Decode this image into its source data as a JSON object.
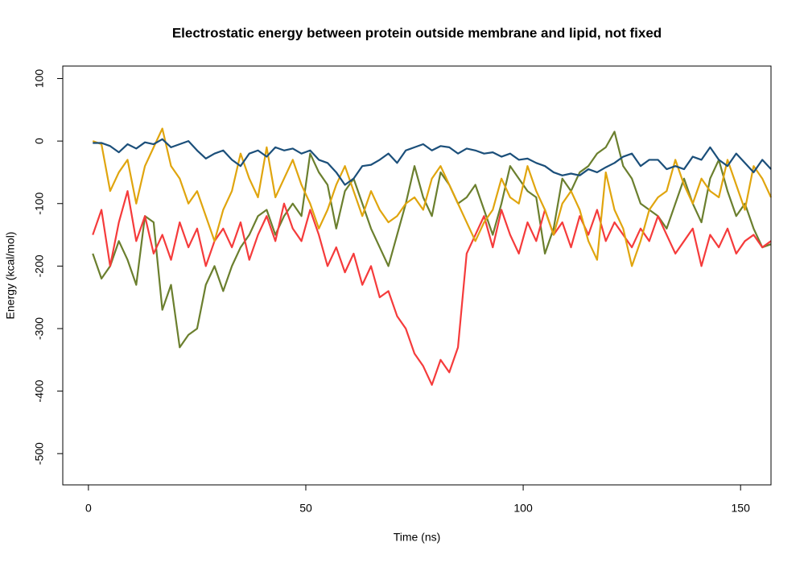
{
  "chart_data": {
    "type": "line",
    "title": "Electrostatic energy between protein outside membrane and lipid, not fixed",
    "x_label": "Time (ns)",
    "y_label": "Energy (kcal/mol)",
    "x": [
      1,
      3,
      5,
      7,
      9,
      11,
      13,
      15,
      17,
      19,
      21,
      23,
      25,
      27,
      29,
      31,
      33,
      35,
      37,
      39,
      41,
      43,
      45,
      47,
      49,
      51,
      53,
      55,
      57,
      59,
      61,
      63,
      65,
      67,
      69,
      71,
      73,
      75,
      77,
      79,
      81,
      83,
      85,
      87,
      89,
      91,
      93,
      95,
      97,
      99,
      101,
      103,
      105,
      107,
      109,
      111,
      113,
      115,
      117,
      119,
      121,
      123,
      125,
      127,
      129,
      131,
      133,
      135,
      137,
      139,
      141,
      143,
      145,
      147,
      149,
      151,
      153,
      155,
      157
    ],
    "series": [
      {
        "color": "#6b7f2e",
        "values": [
          -180,
          -220,
          -200,
          -160,
          -190,
          -230,
          -120,
          -130,
          -270,
          -230,
          -330,
          -310,
          -300,
          -230,
          -200,
          -240,
          -200,
          -170,
          -150,
          -120,
          -110,
          -150,
          -120,
          -100,
          -120,
          -20,
          -50,
          -70,
          -140,
          -80,
          -60,
          -100,
          -140,
          -170,
          -200,
          -150,
          -100,
          -40,
          -90,
          -120,
          -50,
          -70,
          -100,
          -90,
          -70,
          -110,
          -150,
          -100,
          -40,
          -60,
          -80,
          -90,
          -180,
          -140,
          -60,
          -80,
          -50,
          -40,
          -20,
          -10,
          15,
          -40,
          -60,
          -100,
          -110,
          -120,
          -140,
          -100,
          -60,
          -100,
          -130,
          -60,
          -30,
          -80,
          -120,
          -100,
          -140,
          -170,
          -165
        ]
      },
      {
        "color": "#f53b3b",
        "values": [
          -150,
          -110,
          -200,
          -130,
          -80,
          -160,
          -120,
          -180,
          -150,
          -190,
          -130,
          -170,
          -140,
          -200,
          -160,
          -140,
          -170,
          -130,
          -190,
          -150,
          -120,
          -160,
          -100,
          -140,
          -160,
          -110,
          -150,
          -200,
          -170,
          -210,
          -180,
          -230,
          -200,
          -250,
          -240,
          -280,
          -300,
          -340,
          -360,
          -390,
          -350,
          -370,
          -330,
          -180,
          -150,
          -120,
          -170,
          -110,
          -150,
          -180,
          -130,
          -160,
          -110,
          -150,
          -130,
          -170,
          -120,
          -150,
          -110,
          -160,
          -130,
          -150,
          -170,
          -140,
          -160,
          -120,
          -150,
          -180,
          -160,
          -140,
          -200,
          -150,
          -170,
          -140,
          -180,
          -160,
          -150,
          -170,
          -160
        ]
      },
      {
        "color": "#e0a50e",
        "values": [
          0,
          -5,
          -80,
          -50,
          -30,
          -100,
          -40,
          -10,
          20,
          -40,
          -60,
          -100,
          -80,
          -120,
          -160,
          -110,
          -80,
          -20,
          -60,
          -90,
          -10,
          -90,
          -60,
          -30,
          -70,
          -100,
          -140,
          -110,
          -70,
          -40,
          -80,
          -120,
          -80,
          -110,
          -130,
          -120,
          -100,
          -90,
          -110,
          -60,
          -40,
          -70,
          -100,
          -130,
          -160,
          -130,
          -110,
          -60,
          -90,
          -100,
          -40,
          -80,
          -110,
          -150,
          -100,
          -80,
          -110,
          -160,
          -190,
          -50,
          -110,
          -140,
          -200,
          -160,
          -110,
          -90,
          -80,
          -30,
          -70,
          -100,
          -60,
          -80,
          -90,
          -30,
          -70,
          -110,
          -40,
          -60,
          -90
        ]
      },
      {
        "color": "#1b4f7a",
        "values": [
          -3,
          -3,
          -8,
          -18,
          -5,
          -12,
          -2,
          -5,
          3,
          -10,
          -5,
          0,
          -15,
          -28,
          -20,
          -15,
          -30,
          -40,
          -20,
          -15,
          -25,
          -10,
          -15,
          -12,
          -20,
          -15,
          -30,
          -35,
          -50,
          -70,
          -60,
          -40,
          -38,
          -30,
          -20,
          -35,
          -15,
          -10,
          -5,
          -15,
          -8,
          -10,
          -20,
          -12,
          -15,
          -20,
          -18,
          -25,
          -20,
          -30,
          -28,
          -35,
          -40,
          -50,
          -55,
          -52,
          -55,
          -45,
          -50,
          -42,
          -35,
          -25,
          -20,
          -40,
          -30,
          -30,
          -45,
          -40,
          -45,
          -25,
          -30,
          -10,
          -30,
          -40,
          -20,
          -35,
          -50,
          -30,
          -45
        ]
      }
    ],
    "xlim": [
      -5.9,
      157
    ],
    "xticks": [
      0,
      50,
      100,
      150
    ],
    "ylim": [
      -550,
      120
    ],
    "yticks": [
      -500,
      -400,
      -300,
      -200,
      -100,
      0,
      100
    ]
  }
}
